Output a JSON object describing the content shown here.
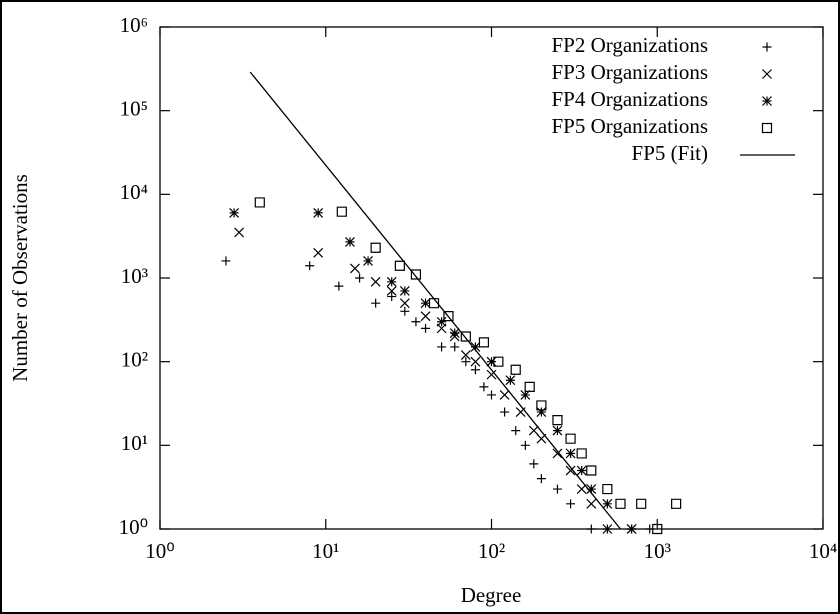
{
  "chart_data": {
    "type": "scatter",
    "xlabel": "Degree",
    "ylabel": "Number of Observations",
    "xscale": "log",
    "yscale": "log",
    "xlim": [
      1,
      10000
    ],
    "ylim": [
      1,
      1000000
    ],
    "xticks": [
      {
        "value": 1,
        "label": "10⁰"
      },
      {
        "value": 10,
        "label": "10¹"
      },
      {
        "value": 100,
        "label": "10²"
      },
      {
        "value": 1000,
        "label": "10³"
      },
      {
        "value": 10000,
        "label": "10⁴"
      }
    ],
    "yticks": [
      {
        "value": 1,
        "label": "10⁰"
      },
      {
        "value": 10,
        "label": "10¹"
      },
      {
        "value": 100,
        "label": "10²"
      },
      {
        "value": 1000,
        "label": "10³"
      },
      {
        "value": 10000,
        "label": "10⁴"
      },
      {
        "value": 100000,
        "label": "10⁵"
      },
      {
        "value": 1000000,
        "label": "10⁶"
      }
    ],
    "legend": "upper right",
    "series": [
      {
        "name": "FP2 Organizations",
        "marker": "plus",
        "color": "#000000",
        "x": [
          2.5,
          8,
          12,
          16,
          20,
          25,
          30,
          35,
          40,
          50,
          60,
          70,
          80,
          90,
          100,
          120,
          140,
          160,
          180,
          200,
          250,
          300,
          400,
          500,
          700,
          900
        ],
        "values": [
          1600,
          1400,
          800,
          1000,
          500,
          600,
          400,
          300,
          250,
          150,
          150,
          100,
          80,
          50,
          40,
          25,
          15,
          10,
          6,
          4,
          3,
          2,
          1,
          1,
          1,
          1
        ]
      },
      {
        "name": "FP3 Organizations",
        "marker": "cross",
        "color": "#000000",
        "x": [
          3,
          9,
          15,
          20,
          25,
          30,
          40,
          50,
          60,
          70,
          80,
          100,
          120,
          150,
          180,
          200,
          250,
          300,
          350,
          400,
          500,
          700
        ],
        "values": [
          3500,
          2000,
          1300,
          900,
          700,
          500,
          350,
          250,
          200,
          120,
          100,
          70,
          40,
          25,
          15,
          12,
          8,
          5,
          3,
          2,
          1,
          1
        ]
      },
      {
        "name": "FP4 Organizations",
        "marker": "star",
        "color": "#000000",
        "x": [
          2.8,
          9,
          14,
          18,
          25,
          30,
          40,
          50,
          60,
          80,
          100,
          130,
          160,
          200,
          250,
          300,
          350,
          400,
          500,
          700
        ],
        "values": [
          6000,
          6000,
          2700,
          1600,
          900,
          700,
          500,
          300,
          220,
          150,
          100,
          60,
          40,
          25,
          15,
          8,
          5,
          3,
          2,
          1
        ]
      },
      {
        "name": "FP5 Organizations",
        "marker": "square",
        "color": "#000000",
        "x": [
          4,
          12.5,
          20,
          28,
          35,
          45,
          55,
          70,
          90,
          110,
          140,
          170,
          200,
          250,
          300,
          350,
          400,
          500,
          600,
          800,
          1000,
          1300
        ],
        "values": [
          8000,
          6200,
          2300,
          1400,
          1100,
          500,
          350,
          200,
          170,
          100,
          80,
          50,
          30,
          20,
          12,
          8,
          5,
          3,
          2,
          2,
          1,
          2
        ]
      },
      {
        "name": "FP5 (Fit)",
        "marker": "line",
        "color": "#000000",
        "x": [
          3.5,
          600
        ],
        "values": [
          290000,
          1
        ]
      }
    ]
  }
}
